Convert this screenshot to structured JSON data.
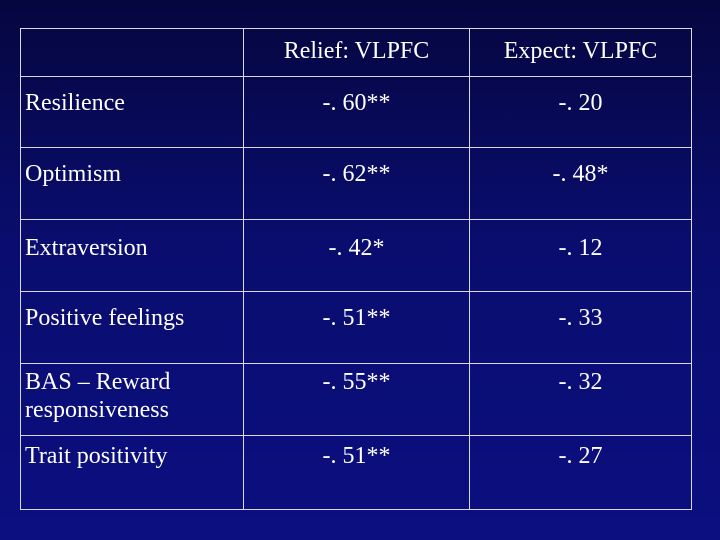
{
  "table": {
    "header": {
      "corner": "",
      "col1": "Relief: VLPFC",
      "col2": "Expect: VLPFC"
    },
    "rows": [
      {
        "label": "Resilience",
        "relief": "-. 60**",
        "expect": "-. 20"
      },
      {
        "label": "Optimism",
        "relief": "-. 62**",
        "expect": "-. 48*"
      },
      {
        "label": "Extraversion",
        "relief": "-. 42*",
        "expect": "-. 12"
      },
      {
        "label": "Positive feelings",
        "relief": "-. 51**",
        "expect": "-. 33"
      },
      {
        "label": "BAS – Reward responsiveness",
        "relief": "-. 55**",
        "expect": "-. 32"
      },
      {
        "label": "Trait positivity",
        "relief": "-. 51**",
        "expect": "-. 27"
      }
    ]
  },
  "colors": {
    "background_top": "#05063f",
    "background_bottom": "#0b0f80",
    "text": "#ffffff",
    "border": "#d8d8e8"
  }
}
